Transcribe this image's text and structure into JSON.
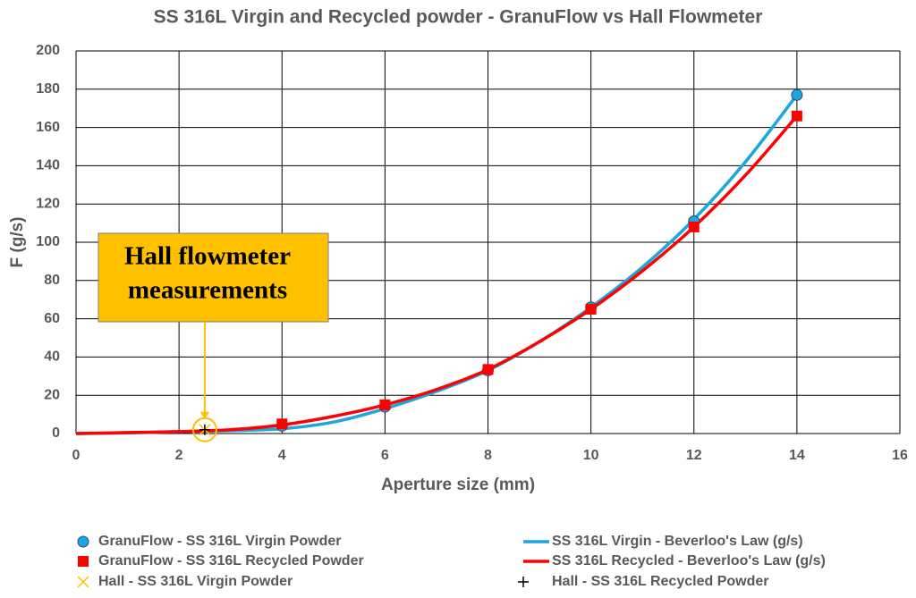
{
  "chart_data": {
    "type": "scatter",
    "title": "SS 316L Virgin and Recycled powder - GranuFlow vs Hall Flowmeter",
    "x_label": "Aperture size (mm)",
    "y_label": "F (g/s)",
    "xlim": [
      0,
      16
    ],
    "xticks": [
      0,
      2,
      4,
      6,
      8,
      10,
      12,
      14,
      16
    ],
    "ylim": [
      0,
      200
    ],
    "yticks": [
      0,
      20,
      40,
      60,
      80,
      100,
      120,
      140,
      160,
      180,
      200
    ],
    "grid": true,
    "legend": "bottom",
    "annotation": {
      "lines": [
        "Hall flowmeter",
        "measurements"
      ],
      "x": 2.5,
      "y": 2
    },
    "series": [
      {
        "name": "GranuFlow - SS 316L Virgin Powder",
        "color": "#1CA6E0",
        "mode": "marker",
        "marker": "circle",
        "x": [
          4,
          6,
          8,
          10,
          12,
          14
        ],
        "values": [
          4,
          14,
          33,
          66,
          111,
          177
        ]
      },
      {
        "name": "SS 316L Virgin - Beverloo's Law (g/s)",
        "color": "#1CA6E0",
        "mode": "line",
        "x": [
          0,
          1,
          2,
          3,
          4,
          5,
          6,
          7,
          8,
          9,
          10,
          11,
          12,
          13,
          14
        ],
        "values": [
          0,
          0.3,
          1,
          1.5,
          2.5,
          6,
          13,
          22,
          33,
          48,
          66,
          87,
          112,
          142,
          177
        ]
      },
      {
        "name": "GranuFlow - SS 316L Recycled Powder",
        "color": "#FF0000",
        "mode": "marker",
        "marker": "square",
        "x": [
          4,
          6,
          8,
          10,
          12,
          14
        ],
        "values": [
          5,
          15,
          33.5,
          65,
          108,
          166
        ]
      },
      {
        "name": "SS 316L Recycled - Beverloo's Law (g/s)",
        "color": "#FF0000",
        "mode": "line",
        "x": [
          0,
          1,
          2,
          3,
          4,
          5,
          6,
          7,
          8,
          9,
          10,
          11,
          12,
          13,
          14
        ],
        "values": [
          0,
          0.5,
          1,
          2,
          4.5,
          9,
          15,
          23,
          33.5,
          48,
          65,
          85,
          108,
          135,
          166
        ]
      },
      {
        "name": "Hall - SS 316L Virgin Powder",
        "color": "#FFC000",
        "mode": "marker",
        "marker": "x",
        "x": [
          2.5
        ],
        "values": [
          2
        ]
      },
      {
        "name": "Hall - SS 316L Recycled Powder",
        "color": "#000000",
        "mode": "marker",
        "marker": "plus",
        "x": [
          2.5
        ],
        "values": [
          2
        ]
      }
    ]
  }
}
